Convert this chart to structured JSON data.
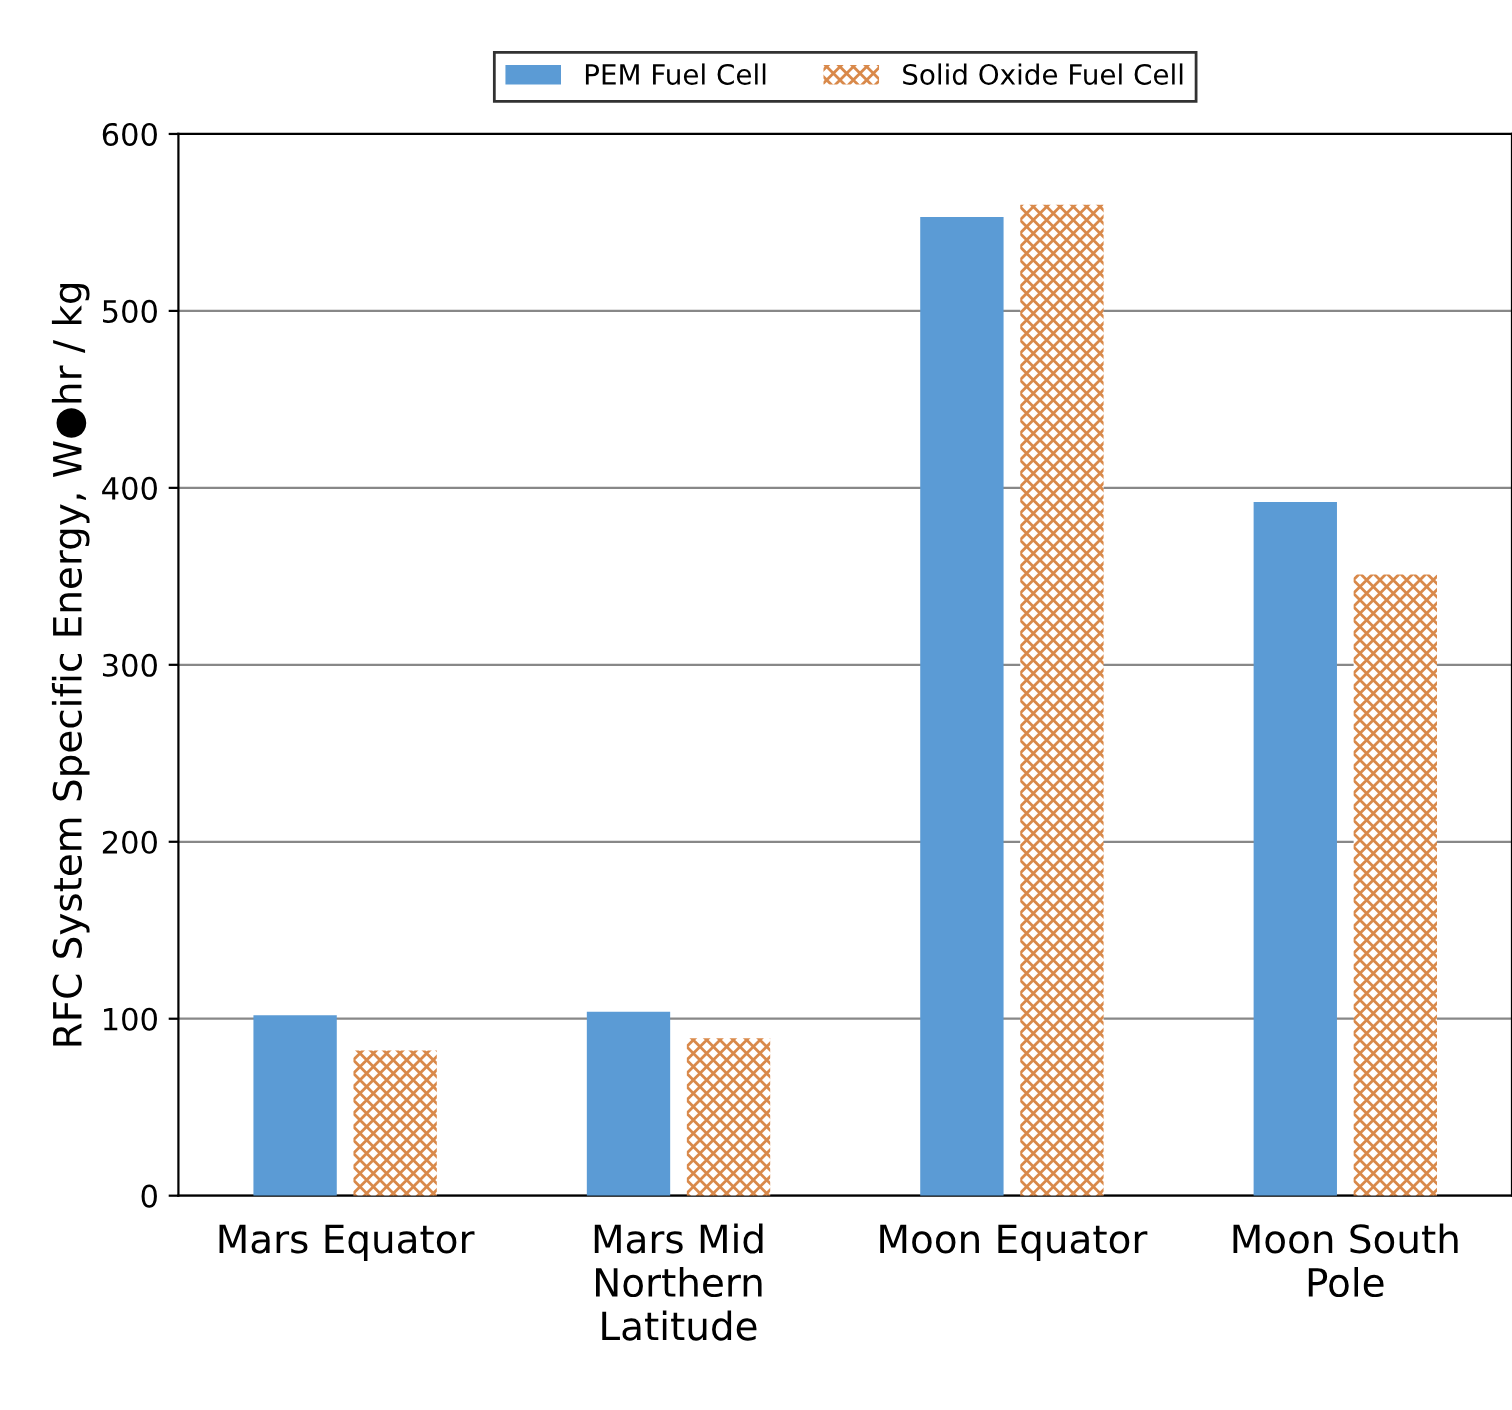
{
  "chart_data": {
    "type": "bar",
    "ylabel": "RFC System Specific Energy, W●hr / kg",
    "categories": [
      "Mars Equator",
      "Mars Mid\nNorthern\nLatitude",
      "Moon Equator",
      "Moon South\nPole"
    ],
    "series": [
      {
        "name": "PEM Fuel Cell",
        "color": "#5b9bd5",
        "values": [
          102,
          104,
          553,
          392
        ]
      },
      {
        "name": "Solid Oxide Fuel Cell",
        "color": "#d9894a",
        "values": [
          82,
          89,
          560,
          351
        ]
      }
    ],
    "ylim": [
      0,
      600
    ],
    "yticks": [
      0,
      100,
      200,
      300,
      400,
      500,
      600
    ],
    "grid": "y",
    "legend": "top"
  }
}
